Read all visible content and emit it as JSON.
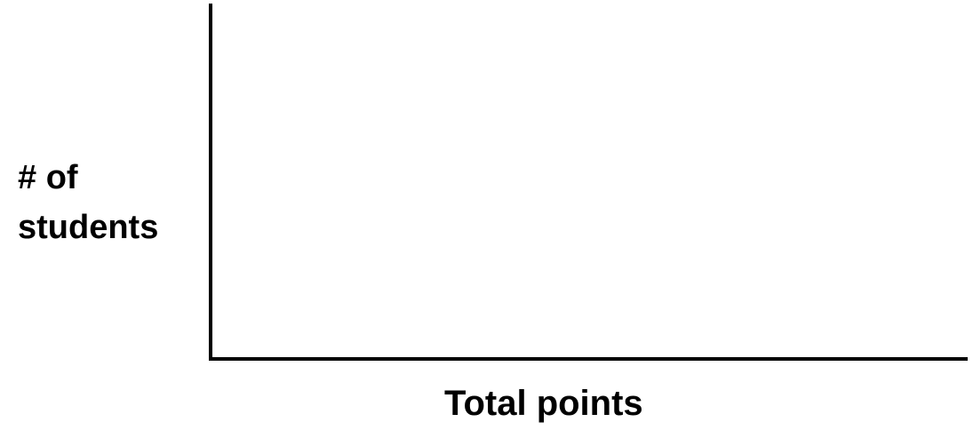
{
  "chart_data": {
    "type": "bar",
    "title": "",
    "ylabel_lines": [
      "# of",
      "students"
    ],
    "xlabel": "Total points",
    "categories": [],
    "values": [],
    "grid": false,
    "axis_color": "#000000"
  }
}
